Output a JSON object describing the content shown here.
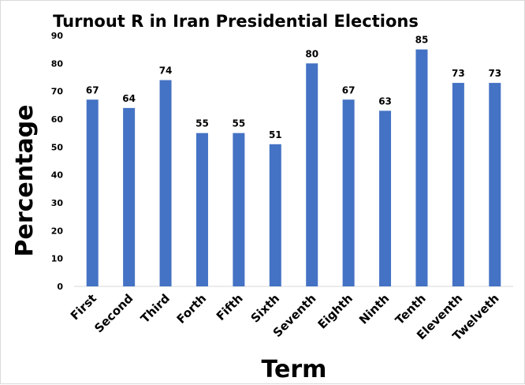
{
  "chart_data": {
    "type": "bar",
    "title": "Turnout R in Iran Presidential Elections",
    "xlabel": "Term",
    "ylabel": "Percentage",
    "categories": [
      "First",
      "Second",
      "Third",
      "Forth",
      "Fifth",
      "Sixth",
      "Seventh",
      "Eighth",
      "Ninth",
      "Tenth",
      "Eleventh",
      "Twelveth"
    ],
    "values": [
      67,
      64,
      74,
      55,
      55,
      51,
      80,
      67,
      63,
      85,
      73,
      73
    ],
    "ylim": [
      0,
      90
    ],
    "yticks": [
      0,
      10,
      20,
      30,
      40,
      50,
      60,
      70,
      80,
      90
    ],
    "grid": false,
    "legend": "none",
    "bar_color": "#4472C4"
  }
}
